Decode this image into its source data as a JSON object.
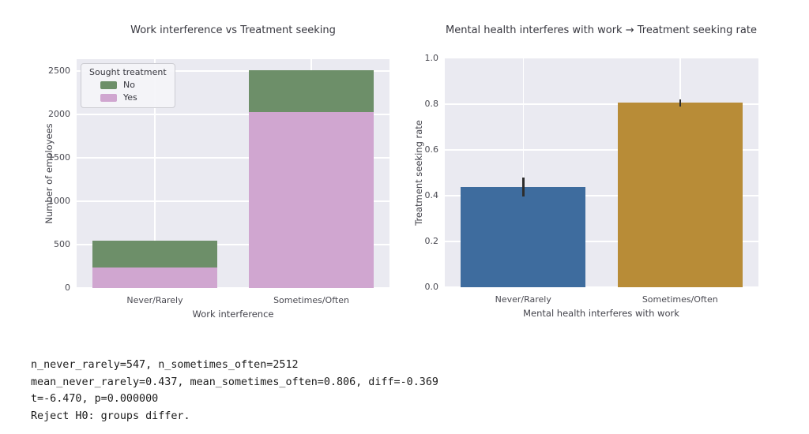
{
  "colors": {
    "plot_bg": "#eaeaf1",
    "grid": "#ffffff",
    "tick": "#4a4a52",
    "green": "#6d8f69",
    "pink": "#d0a6d0",
    "blue": "#3e6c9e",
    "gold": "#b88c37",
    "error": "#2d2d2d"
  },
  "chart_data": [
    {
      "type": "bar",
      "stacked": true,
      "title": "Work interference vs Treatment seeking",
      "xlabel": "Work interference",
      "ylabel": "Number of employees",
      "categories": [
        "Never/Rarely",
        "Sometimes/Often"
      ],
      "yticks": [
        "0",
        "500",
        "1000",
        "1500",
        "2000",
        "2500"
      ],
      "ylim": [
        0,
        2635
      ],
      "grid": true,
      "legend": {
        "title": "Sought treatment",
        "position": "upper-left",
        "entries": [
          {
            "label": "No",
            "color_key": "green"
          },
          {
            "label": "Yes",
            "color_key": "pink"
          }
        ]
      },
      "series": [
        {
          "name": "Yes",
          "color_key": "pink",
          "values": [
            239,
            2025
          ]
        },
        {
          "name": "No",
          "color_key": "green",
          "values": [
            308,
            487
          ]
        }
      ],
      "totals": [
        547,
        2512
      ]
    },
    {
      "type": "bar",
      "stacked": false,
      "title": "Mental health interferes with work → Treatment seeking rate",
      "xlabel": "Mental health interferes with work",
      "ylabel": "Treatment seeking rate",
      "categories": [
        "Never/Rarely",
        "Sometimes/Often"
      ],
      "yticks": [
        "0.0",
        "0.2",
        "0.4",
        "0.6",
        "0.8",
        "1.0"
      ],
      "ylim": [
        0,
        1.0
      ],
      "grid": true,
      "values": [
        0.437,
        0.806
      ],
      "bar_colors": [
        "blue",
        "gold"
      ],
      "error_bars": [
        [
          0.395,
          0.479
        ],
        [
          0.79,
          0.821
        ]
      ]
    }
  ],
  "stats": {
    "lines": [
      "n_never_rarely=547, n_sometimes_often=2512",
      "mean_never_rarely=0.437, mean_sometimes_often=0.806, diff=-0.369",
      "t=-6.470, p=0.000000",
      "Reject H0: groups differ."
    ]
  }
}
